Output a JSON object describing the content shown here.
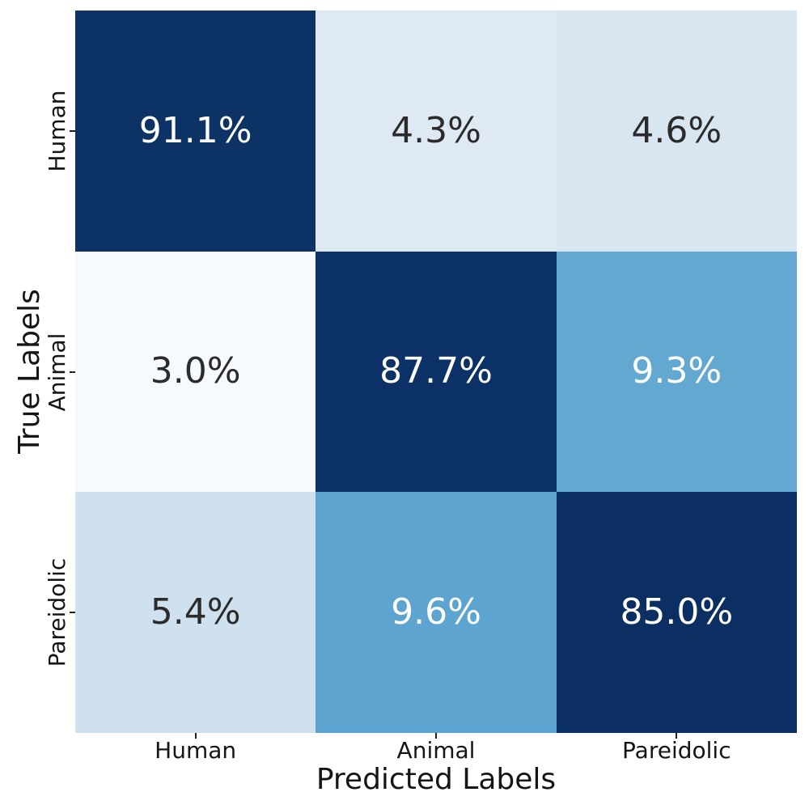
{
  "figure": {
    "background": "#ffffff",
    "axis_text_color": "#151515"
  },
  "chart_data": {
    "type": "heatmap",
    "title": "",
    "xlabel": "Predicted Labels",
    "ylabel": "True Labels",
    "x_categories": [
      "Human",
      "Animal",
      "Pareidolic"
    ],
    "y_categories": [
      "Human",
      "Animal",
      "Pareidolic"
    ],
    "values_percent": [
      [
        91.1,
        4.3,
        4.6
      ],
      [
        3.0,
        87.7,
        9.3
      ],
      [
        5.4,
        9.6,
        85.0
      ]
    ],
    "cell_labels": [
      [
        "91.1%",
        "4.3%",
        "4.6%"
      ],
      [
        "3.0%",
        "87.7%",
        "9.3%"
      ],
      [
        "5.4%",
        "9.6%",
        "85.0%"
      ]
    ],
    "cell_colors": [
      [
        "#0d3266",
        "#dee9f4",
        "#d8e6f2"
      ],
      [
        "#f6f9fd",
        "#0b3166",
        "#63a8d1"
      ],
      [
        "#cfe0ee",
        "#5da4d0",
        "#0b2f62"
      ]
    ],
    "cell_text_colors": [
      [
        "#ffffff",
        "#2b2b2b",
        "#2b2b2b"
      ],
      [
        "#2b2b2b",
        "#ffffff",
        "#ffffff"
      ],
      [
        "#2b2b2b",
        "#ffffff",
        "#ffffff"
      ]
    ],
    "colormap": "Blues",
    "legend": "none",
    "grid": false
  }
}
